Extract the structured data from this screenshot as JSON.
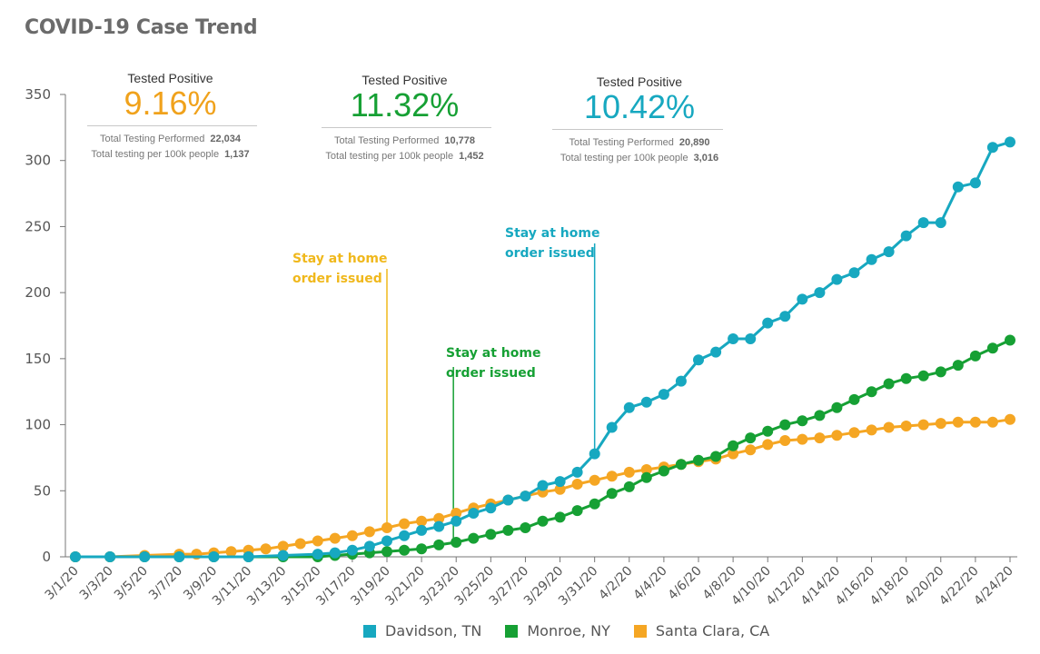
{
  "title": "COVID-19 Case Trend",
  "stats": [
    {
      "heading": "Tested Positive",
      "pct": "9.16%",
      "color": "#f0a21c",
      "row1_label": "Total Testing Performed",
      "row1_value": "22,034",
      "row2_label": "Total testing per 100k people",
      "row2_value": "1,137"
    },
    {
      "heading": "Tested Positive",
      "pct": "11.32%",
      "color": "#16a034",
      "row1_label": "Total Testing Performed",
      "row1_value": "10,778",
      "row2_label": "Total testing per 100k people",
      "row2_value": "1,452"
    },
    {
      "heading": "Tested Positive",
      "pct": "10.42%",
      "color": "#17a8c0",
      "row1_label": "Total Testing Performed",
      "row1_value": "20,890",
      "row2_label": "Total testing per 100k people",
      "row2_value": "3,016"
    }
  ],
  "annotations": [
    {
      "line1": "Stay at home",
      "line2": "order issued",
      "color": "#f0b81c",
      "date": "3/19/20"
    },
    {
      "line1": "Stay at home",
      "line2": "order issued",
      "color": "#16a034",
      "date": "3/22/20"
    },
    {
      "line1": "Stay at home",
      "line2": "order issued",
      "color": "#17a8c0",
      "date": "3/31/20"
    }
  ],
  "chart_data": {
    "type": "line",
    "title": "COVID-19 Case Trend",
    "xlabel": "",
    "ylabel": "",
    "ylim": [
      0,
      350
    ],
    "yticks": [
      0,
      50,
      100,
      150,
      200,
      250,
      300,
      350
    ],
    "x_start": "3/1/20",
    "x_end": "4/24/20",
    "x_tick_labels": [
      "3/1/20",
      "3/3/20",
      "3/5/20",
      "3/7/20",
      "3/9/20",
      "3/11/20",
      "3/13/20",
      "3/15/20",
      "3/17/20",
      "3/19/20",
      "3/21/20",
      "3/23/20",
      "3/25/20",
      "3/27/20",
      "3/29/20",
      "3/31/20",
      "4/2/20",
      "4/4/20",
      "4/6/20",
      "4/8/20",
      "4/10/20",
      "4/12/20",
      "4/14/20",
      "4/16/20",
      "4/18/20",
      "4/20/20",
      "4/22/20",
      "4/24/20"
    ],
    "legend_position": "bottom",
    "grid": false,
    "series": [
      {
        "name": "Davidson, TN",
        "color": "#17a8c0",
        "points": [
          [
            "3/1/20",
            0
          ],
          [
            "3/3/20",
            0
          ],
          [
            "3/5/20",
            0
          ],
          [
            "3/7/20",
            0
          ],
          [
            "3/9/20",
            0
          ],
          [
            "3/11/20",
            0
          ],
          [
            "3/13/20",
            1
          ],
          [
            "3/15/20",
            2
          ],
          [
            "3/16/20",
            3
          ],
          [
            "3/17/20",
            5
          ],
          [
            "3/18/20",
            8
          ],
          [
            "3/19/20",
            12
          ],
          [
            "3/20/20",
            16
          ],
          [
            "3/21/20",
            20
          ],
          [
            "3/22/20",
            23
          ],
          [
            "3/23/20",
            27
          ],
          [
            "3/24/20",
            33
          ],
          [
            "3/25/20",
            37
          ],
          [
            "3/26/20",
            43
          ],
          [
            "3/27/20",
            46
          ],
          [
            "3/28/20",
            54
          ],
          [
            "3/29/20",
            57
          ],
          [
            "3/30/20",
            64
          ],
          [
            "3/31/20",
            78
          ],
          [
            "4/1/20",
            98
          ],
          [
            "4/2/20",
            113
          ],
          [
            "4/3/20",
            117
          ],
          [
            "4/4/20",
            123
          ],
          [
            "4/5/20",
            133
          ],
          [
            "4/6/20",
            149
          ],
          [
            "4/7/20",
            155
          ],
          [
            "4/8/20",
            165
          ],
          [
            "4/9/20",
            165
          ],
          [
            "4/10/20",
            177
          ],
          [
            "4/11/20",
            182
          ],
          [
            "4/12/20",
            195
          ],
          [
            "4/13/20",
            200
          ],
          [
            "4/14/20",
            210
          ],
          [
            "4/15/20",
            215
          ],
          [
            "4/16/20",
            225
          ],
          [
            "4/17/20",
            231
          ],
          [
            "4/18/20",
            243
          ],
          [
            "4/19/20",
            253
          ],
          [
            "4/20/20",
            253
          ],
          [
            "4/21/20",
            280
          ],
          [
            "4/22/20",
            283
          ],
          [
            "4/23/20",
            310
          ],
          [
            "4/24/20",
            314
          ]
        ]
      },
      {
        "name": "Monroe, NY",
        "color": "#16a034",
        "points": [
          [
            "3/1/20",
            0
          ],
          [
            "3/3/20",
            0
          ],
          [
            "3/5/20",
            0
          ],
          [
            "3/7/20",
            0
          ],
          [
            "3/9/20",
            0
          ],
          [
            "3/11/20",
            0
          ],
          [
            "3/13/20",
            0
          ],
          [
            "3/15/20",
            0
          ],
          [
            "3/16/20",
            1
          ],
          [
            "3/17/20",
            2
          ],
          [
            "3/18/20",
            3
          ],
          [
            "3/19/20",
            4
          ],
          [
            "3/20/20",
            5
          ],
          [
            "3/21/20",
            6
          ],
          [
            "3/22/20",
            9
          ],
          [
            "3/23/20",
            11
          ],
          [
            "3/24/20",
            14
          ],
          [
            "3/25/20",
            17
          ],
          [
            "3/26/20",
            20
          ],
          [
            "3/27/20",
            22
          ],
          [
            "3/28/20",
            27
          ],
          [
            "3/29/20",
            30
          ],
          [
            "3/30/20",
            35
          ],
          [
            "3/31/20",
            40
          ],
          [
            "4/1/20",
            48
          ],
          [
            "4/2/20",
            53
          ],
          [
            "4/3/20",
            60
          ],
          [
            "4/4/20",
            65
          ],
          [
            "4/5/20",
            70
          ],
          [
            "4/6/20",
            73
          ],
          [
            "4/7/20",
            76
          ],
          [
            "4/8/20",
            84
          ],
          [
            "4/9/20",
            90
          ],
          [
            "4/10/20",
            95
          ],
          [
            "4/11/20",
            100
          ],
          [
            "4/12/20",
            103
          ],
          [
            "4/13/20",
            107
          ],
          [
            "4/14/20",
            113
          ],
          [
            "4/15/20",
            119
          ],
          [
            "4/16/20",
            125
          ],
          [
            "4/17/20",
            131
          ],
          [
            "4/18/20",
            135
          ],
          [
            "4/19/20",
            137
          ],
          [
            "4/20/20",
            140
          ],
          [
            "4/21/20",
            145
          ],
          [
            "4/22/20",
            152
          ],
          [
            "4/23/20",
            158
          ],
          [
            "4/24/20",
            164
          ]
        ]
      },
      {
        "name": "Santa Clara, CA",
        "color": "#f5a623",
        "points": [
          [
            "3/1/20",
            0
          ],
          [
            "3/3/20",
            0
          ],
          [
            "3/5/20",
            1
          ],
          [
            "3/7/20",
            2
          ],
          [
            "3/8/20",
            2
          ],
          [
            "3/9/20",
            3
          ],
          [
            "3/10/20",
            4
          ],
          [
            "3/11/20",
            5
          ],
          [
            "3/12/20",
            6
          ],
          [
            "3/13/20",
            8
          ],
          [
            "3/14/20",
            10
          ],
          [
            "3/15/20",
            12
          ],
          [
            "3/16/20",
            14
          ],
          [
            "3/17/20",
            16
          ],
          [
            "3/18/20",
            19
          ],
          [
            "3/19/20",
            22
          ],
          [
            "3/20/20",
            25
          ],
          [
            "3/21/20",
            27
          ],
          [
            "3/22/20",
            29
          ],
          [
            "3/23/20",
            33
          ],
          [
            "3/24/20",
            37
          ],
          [
            "3/25/20",
            40
          ],
          [
            "3/26/20",
            43
          ],
          [
            "3/27/20",
            46
          ],
          [
            "3/28/20",
            49
          ],
          [
            "3/29/20",
            51
          ],
          [
            "3/30/20",
            55
          ],
          [
            "3/31/20",
            58
          ],
          [
            "4/1/20",
            61
          ],
          [
            "4/2/20",
            64
          ],
          [
            "4/3/20",
            66
          ],
          [
            "4/4/20",
            68
          ],
          [
            "4/5/20",
            70
          ],
          [
            "4/6/20",
            72
          ],
          [
            "4/7/20",
            74
          ],
          [
            "4/8/20",
            78
          ],
          [
            "4/9/20",
            81
          ],
          [
            "4/10/20",
            85
          ],
          [
            "4/11/20",
            88
          ],
          [
            "4/12/20",
            89
          ],
          [
            "4/13/20",
            90
          ],
          [
            "4/14/20",
            92
          ],
          [
            "4/15/20",
            94
          ],
          [
            "4/16/20",
            96
          ],
          [
            "4/17/20",
            98
          ],
          [
            "4/18/20",
            99
          ],
          [
            "4/19/20",
            100
          ],
          [
            "4/20/20",
            101
          ],
          [
            "4/21/20",
            102
          ],
          [
            "4/22/20",
            102
          ],
          [
            "4/23/20",
            102
          ],
          [
            "4/24/20",
            104
          ]
        ]
      }
    ]
  }
}
